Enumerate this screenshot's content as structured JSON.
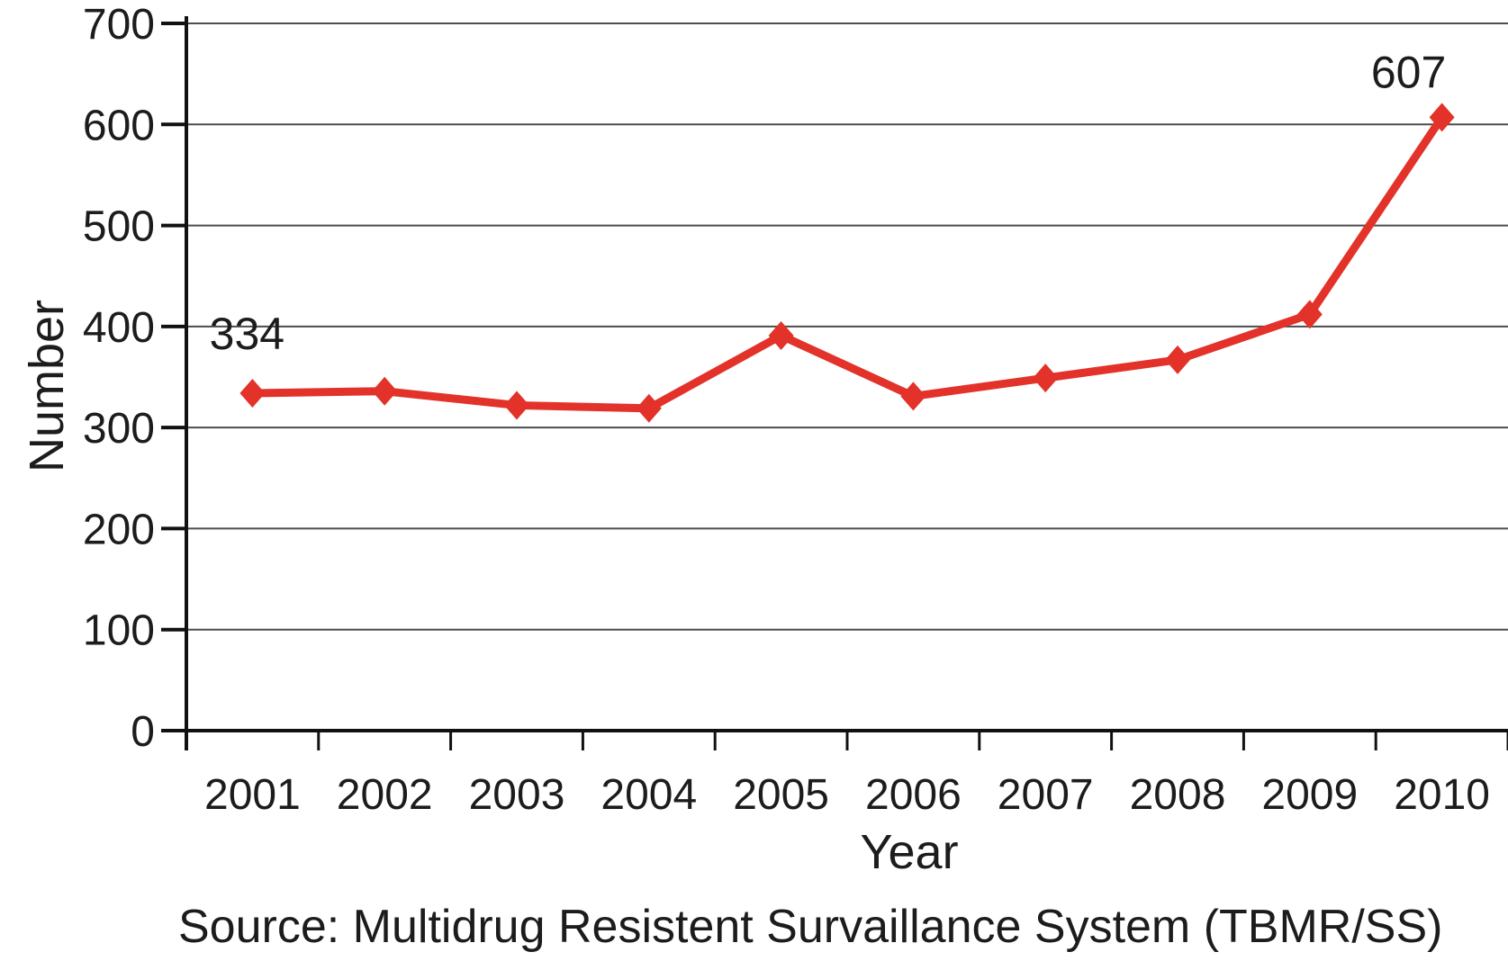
{
  "chart_data": {
    "type": "line",
    "title": "",
    "categories": [
      "2001",
      "2002",
      "2003",
      "2004",
      "2005",
      "2006",
      "2007",
      "2008",
      "2009",
      "2010"
    ],
    "series": [
      {
        "name": "Number",
        "values": [
          334,
          336,
          322,
          319,
          391,
          331,
          349,
          367,
          412,
          607
        ]
      }
    ],
    "xlabel": "Year",
    "ylabel": "Number",
    "ylim": [
      0,
      700
    ],
    "y_ticks": [
      0,
      100,
      200,
      300,
      400,
      500,
      600,
      700
    ],
    "grid": "horizontal",
    "legend": "none",
    "line_color": "#e23229",
    "marker_shape": "diamond",
    "point_labels": [
      {
        "index": 0,
        "category": "2001",
        "text": "334"
      },
      {
        "index": 9,
        "category": "2010",
        "text": "607"
      }
    ]
  },
  "source_note": "Source: Multidrug Resistent Survaillance System (TBMR/SS)",
  "colors": {
    "line": "#e23229",
    "text": "#1c1c1c",
    "gridline": "#4d4d4d",
    "axis": "#111111",
    "background": "#ffffff"
  }
}
